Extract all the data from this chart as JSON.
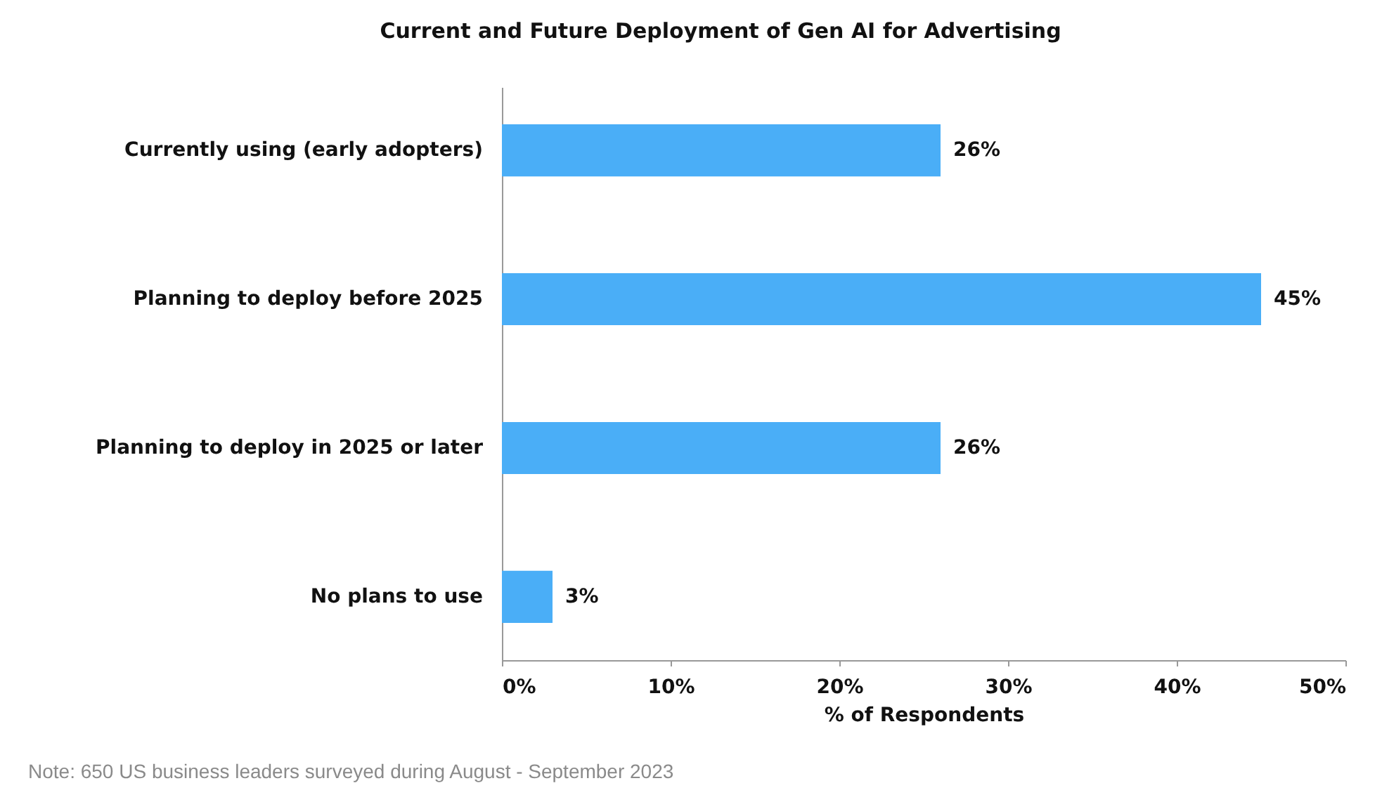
{
  "chart_data": {
    "type": "bar",
    "orientation": "horizontal",
    "title": "Current and Future Deployment of Gen AI for Advertising",
    "xlabel": "% of Respondents",
    "categories": [
      "Currently using (early adopters)",
      "Planning to deploy before 2025",
      "Planning to deploy in 2025 or later",
      "No plans to use"
    ],
    "values": [
      26,
      45,
      26,
      3
    ],
    "value_labels": [
      "26%",
      "45%",
      "26%",
      "3%"
    ],
    "color": "#4aaef7",
    "xlim": [
      0,
      50
    ],
    "xticks": [
      {
        "value": 0,
        "label": "0%"
      },
      {
        "value": 10,
        "label": "10%"
      },
      {
        "value": 20,
        "label": "20%"
      },
      {
        "value": 30,
        "label": "30%"
      },
      {
        "value": 40,
        "label": "40%"
      },
      {
        "value": 50,
        "label": "50%"
      }
    ],
    "grid": false,
    "annotations": [
      "Note: 650 US business leaders surveyed during August - September 2023"
    ]
  }
}
